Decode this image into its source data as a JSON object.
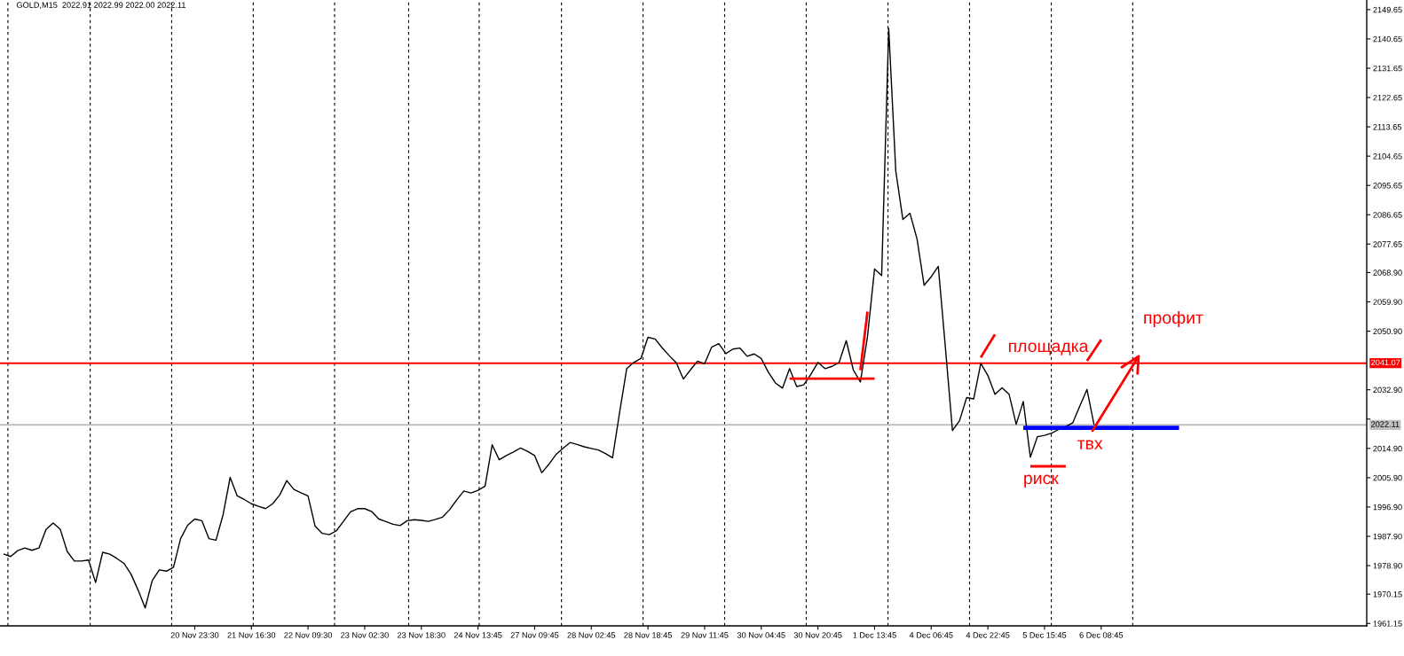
{
  "chart_data": {
    "type": "line",
    "title": "GOLD,M15  2022.91 2022.99 2022.00 2022.11",
    "categories": [
      null,
      null,
      null,
      null,
      null,
      null,
      null,
      null,
      null,
      null,
      null,
      null,
      null,
      null,
      null,
      null,
      null,
      null,
      null,
      null,
      null,
      null,
      null,
      null,
      null,
      null,
      null,
      "20 Nov 23:30",
      null,
      null,
      null,
      null,
      null,
      null,
      null,
      "21 Nov 16:30",
      null,
      null,
      null,
      null,
      null,
      null,
      null,
      "22 Nov 09:30",
      null,
      null,
      null,
      null,
      null,
      null,
      null,
      "23 Nov 02:30",
      null,
      null,
      null,
      null,
      null,
      null,
      null,
      "23 Nov 18:30",
      null,
      null,
      null,
      null,
      null,
      null,
      null,
      "24 Nov 13:45",
      null,
      null,
      null,
      null,
      null,
      null,
      null,
      "27 Nov 09:45",
      null,
      null,
      null,
      null,
      null,
      null,
      null,
      "28 Nov 02:45",
      null,
      null,
      null,
      null,
      null,
      null,
      null,
      "28 Nov 18:45",
      null,
      null,
      null,
      null,
      null,
      null,
      null,
      "29 Nov 11:45",
      null,
      null,
      null,
      null,
      null,
      null,
      null,
      "30 Nov 04:45",
      null,
      null,
      null,
      null,
      null,
      null,
      null,
      "30 Nov 20:45",
      null,
      null,
      null,
      null,
      null,
      null,
      null,
      "1 Dec 13:45",
      null,
      null,
      null,
      null,
      null,
      null,
      null,
      "4 Dec 06:45",
      null,
      null,
      null,
      null,
      null,
      null,
      null,
      "4 Dec 22:45",
      null,
      null,
      null,
      null,
      null,
      null,
      null,
      "5 Dec 15:45",
      null,
      null,
      null,
      null,
      null,
      null,
      null,
      "6 Dec 08:45",
      null,
      null,
      null,
      null,
      null,
      null,
      null,
      null,
      null,
      null,
      null,
      null,
      null,
      null,
      null,
      null,
      null,
      null,
      null,
      null,
      null,
      null,
      null,
      null,
      null,
      null,
      null,
      null,
      null,
      null,
      null,
      null,
      null,
      null,
      null,
      null,
      null
    ],
    "ylim": [
      1960.4,
      2152.6
    ],
    "yticks": [
      1961.15,
      1970.15,
      {
        "value": 1978.9,
        "label": "1978.90"
      },
      {
        "value": 1987.9,
        "label": "1987.90"
      },
      {
        "value": 1996.9,
        "label": "1996.90"
      },
      {
        "value": 2005.9,
        "label": "2005.90"
      },
      {
        "value": 2014.9,
        "label": "2014.90"
      },
      {
        "value": 2023.9,
        "label": null
      },
      {
        "value": 2032.9,
        "label": "2032.90"
      },
      {
        "value": 2050.9,
        "label": "2050.90"
      },
      {
        "value": 2059.9,
        "label": "2059.90"
      },
      {
        "value": 2068.9,
        "label": "2068.90"
      },
      2077.65,
      2086.65,
      2095.65,
      2104.65,
      2113.65,
      2122.65,
      2131.65,
      2140.65,
      2149.65
    ],
    "grid": false,
    "series": [
      {
        "color": "#000000",
        "values": [
          1982.5,
          1981.7,
          1983.5,
          1984.3,
          1983.6,
          1984.3,
          1990.0,
          1992.0,
          1990.1,
          1983.2,
          1980.3,
          1980.3,
          1980.6,
          1973.7,
          1983.0,
          1982.4,
          1981.1,
          1979.6,
          1976.3,
          1971.4,
          1965.9,
          1974.3,
          1977.6,
          1977.2,
          1978.4,
          1987.2,
          1991.3,
          1993.2,
          1992.7,
          1987.2,
          1986.7,
          1994.5,
          2006.0,
          2000.3,
          1999.2,
          1997.9,
          1997.1,
          1996.4,
          1997.9,
          2000.6,
          2005.0,
          2002.3,
          2001.3,
          2000.3,
          1991.0,
          1988.8,
          1988.4,
          1989.6,
          1992.5,
          1995.4,
          1996.4,
          1996.4,
          1995.5,
          1993.2,
          1992.4,
          1991.6,
          1991.2,
          1992.7,
          1993.0,
          1992.8,
          1992.5,
          1993.1,
          1993.8,
          1996.1,
          1999.1,
          2001.8,
          2001.2,
          2002.0,
          2003.3,
          2016.0,
          2011.4,
          2012.7,
          2013.8,
          2015.0,
          2014.0,
          2012.7,
          2007.4,
          2010.0,
          2013.0,
          2014.9,
          2016.7,
          2016.1,
          2015.4,
          2014.9,
          2014.4,
          2013.3,
          2012.0,
          2026.0,
          2039.4,
          2041.3,
          2042.5,
          2049.0,
          2048.5,
          2045.8,
          2043.4,
          2041.2,
          2036.2,
          2039.0,
          2041.7,
          2040.9,
          2046.0,
          2047.1,
          2044.0,
          2045.4,
          2045.7,
          2043.2,
          2043.9,
          2042.5,
          2038.3,
          2035.0,
          2033.4,
          2039.4,
          2033.9,
          2034.4,
          2037.6,
          2041.3,
          2039.4,
          2040.1,
          2041.3,
          2048.0,
          2039.0,
          2035.3,
          2049.2,
          2070.0,
          2068.0,
          2143.9,
          2100.0,
          2085.2,
          2087.1,
          2079.2,
          2065.0,
          2067.6,
          2070.8,
          2046.0,
          2020.4,
          2023.4,
          2030.5,
          2030.1,
          2041.0,
          2037.3,
          2031.5,
          2033.5,
          2031.5,
          2022.3,
          2029.3,
          2012.2,
          2018.5,
          2018.9,
          2019.6,
          2020.7,
          2021.6,
          2022.8,
          2028.0,
          2033.0,
          2022.1,
          null,
          null,
          null,
          null,
          null,
          null,
          null,
          null,
          null,
          null,
          null,
          null,
          null,
          null,
          null,
          null,
          null,
          null,
          null,
          null,
          null,
          null,
          null,
          null,
          null,
          null,
          null,
          null,
          null,
          null,
          null,
          null,
          null,
          null,
          null,
          null,
          null,
          null
        ]
      },
      {
        "color": "#ff0000",
        "values": [
          null,
          null,
          null,
          null,
          null,
          null,
          null,
          null,
          null,
          null,
          null,
          null,
          null,
          null,
          null,
          null,
          null,
          null,
          null,
          null,
          null,
          null,
          null,
          null,
          null,
          null,
          null,
          null,
          null,
          null,
          null,
          null,
          null,
          null,
          null,
          null,
          null,
          null,
          null,
          null,
          null,
          null,
          null,
          null,
          null,
          null,
          null,
          null,
          null,
          null,
          null,
          null,
          null,
          null,
          null,
          null,
          null,
          null,
          null,
          null,
          null,
          null,
          null,
          null,
          null,
          null,
          null,
          null,
          null,
          null,
          null,
          null,
          null,
          null,
          null,
          null,
          null,
          null,
          null,
          null,
          null,
          null,
          null,
          null,
          null,
          null,
          null,
          null,
          null,
          null,
          null,
          null,
          null,
          null,
          null,
          null,
          null,
          null,
          null,
          null,
          null,
          null,
          null,
          null,
          null,
          null,
          null,
          null,
          null,
          null,
          null,
          2036.3,
          2036.3,
          2036.3,
          2036.3,
          2036.3,
          2036.3,
          2036.3,
          2036.3,
          2036.3,
          2036.3,
          2036.3,
          2036.3,
          2036.3,
          null,
          null,
          null,
          null,
          null,
          null,
          null,
          null,
          null,
          null,
          null,
          null,
          null,
          null,
          2042.8,
          2046.4,
          2049.9,
          null,
          null,
          null,
          null,
          2009.4,
          2009.4,
          2009.4,
          2009.4,
          2009.4,
          2009.4,
          null,
          null,
          2041.8,
          2045.0,
          2048.3,
          null,
          null,
          null,
          null,
          null,
          null,
          null,
          null,
          null,
          null,
          null,
          null,
          null,
          null,
          null,
          null,
          null,
          null,
          null,
          null,
          null,
          null,
          null,
          null,
          null,
          null,
          null,
          null,
          null,
          null,
          null,
          null,
          null,
          null,
          null,
          null,
          null
        ]
      },
      {
        "color": "#ff0000",
        "values": [
          null,
          null,
          null,
          null,
          null,
          null,
          null,
          null,
          null,
          null,
          null,
          null,
          null,
          null,
          null,
          null,
          null,
          null,
          null,
          null,
          null,
          null,
          null,
          null,
          null,
          null,
          null,
          null,
          null,
          null,
          null,
          null,
          null,
          null,
          null,
          null,
          null,
          null,
          null,
          null,
          null,
          null,
          null,
          null,
          null,
          null,
          null,
          null,
          null,
          null,
          null,
          null,
          null,
          null,
          null,
          null,
          null,
          null,
          null,
          null,
          null,
          null,
          null,
          null,
          null,
          null,
          null,
          null,
          null,
          null,
          null,
          null,
          null,
          null,
          null,
          null,
          null,
          null,
          null,
          null,
          null,
          null,
          null,
          null,
          null,
          null,
          null,
          null,
          null,
          null,
          null,
          null,
          null,
          null,
          null,
          null,
          null,
          null,
          null,
          null,
          null,
          null,
          null,
          null,
          null,
          null,
          null,
          null,
          null,
          null,
          null,
          null,
          null,
          null,
          null,
          null,
          null,
          null,
          null,
          null,
          null,
          2038.9,
          2056.9,
          null,
          null,
          null,
          null,
          null,
          null,
          null,
          null,
          null,
          null,
          null,
          null,
          null,
          null,
          null,
          null,
          null,
          null,
          null,
          null,
          null,
          null,
          null,
          null,
          null,
          null,
          null,
          null,
          null,
          null,
          null,
          null,
          null,
          null,
          null,
          null,
          null,
          null,
          null,
          null,
          null,
          null,
          null,
          null,
          null,
          null,
          null,
          null,
          null,
          null,
          null,
          null,
          null,
          null,
          null,
          null,
          null,
          null,
          null,
          null,
          null,
          null,
          null,
          null,
          null,
          null,
          null,
          null,
          null,
          null
        ]
      },
      {
        "color": "#0000ff",
        "values": [
          null,
          null,
          null,
          null,
          null,
          null,
          null,
          null,
          null,
          null,
          null,
          null,
          null,
          null,
          null,
          null,
          null,
          null,
          null,
          null,
          null,
          null,
          null,
          null,
          null,
          null,
          null,
          null,
          null,
          null,
          null,
          null,
          null,
          null,
          null,
          null,
          null,
          null,
          null,
          null,
          null,
          null,
          null,
          null,
          null,
          null,
          null,
          null,
          null,
          null,
          null,
          null,
          null,
          null,
          null,
          null,
          null,
          null,
          null,
          null,
          null,
          null,
          null,
          null,
          null,
          null,
          null,
          null,
          null,
          null,
          null,
          null,
          null,
          null,
          null,
          null,
          null,
          null,
          null,
          null,
          null,
          null,
          null,
          null,
          null,
          null,
          null,
          null,
          null,
          null,
          null,
          null,
          null,
          null,
          null,
          null,
          null,
          null,
          null,
          null,
          null,
          null,
          null,
          null,
          null,
          null,
          null,
          null,
          null,
          null,
          null,
          null,
          null,
          null,
          null,
          null,
          null,
          null,
          null,
          null,
          null,
          null,
          null,
          null,
          null,
          null,
          null,
          null,
          null,
          null,
          null,
          null,
          null,
          null,
          null,
          null,
          null,
          null,
          null,
          null,
          null,
          null,
          null,
          null,
          2021.2,
          2021.2,
          2021.2,
          2021.2,
          2021.2,
          2021.2,
          2021.2,
          2021.2,
          2021.2,
          2021.2,
          2021.2,
          2021.2,
          2021.2,
          2021.2,
          2021.2,
          2021.2,
          2021.2,
          2021.2,
          2021.2,
          2021.2,
          2021.2,
          2021.2,
          2021.2,
          null,
          null,
          null,
          null,
          null,
          null,
          null,
          null,
          null,
          null,
          null,
          null,
          null,
          null,
          null,
          null,
          null,
          null,
          null,
          null,
          null,
          null,
          null,
          null,
          null,
          null
        ]
      }
    ],
    "ref_lines": [
      {
        "axis": "y",
        "value": 2041.07,
        "label": "2041.07",
        "color": "#ff0000",
        "line_style": "solid"
      },
      {
        "axis": "y",
        "value": 2022.11,
        "label": "2022.11",
        "color": "#c0c0c0",
        "line_style": "solid"
      }
    ],
    "annotations": [
      "площадка",
      "профит",
      "твх",
      "риск"
    ]
  }
}
